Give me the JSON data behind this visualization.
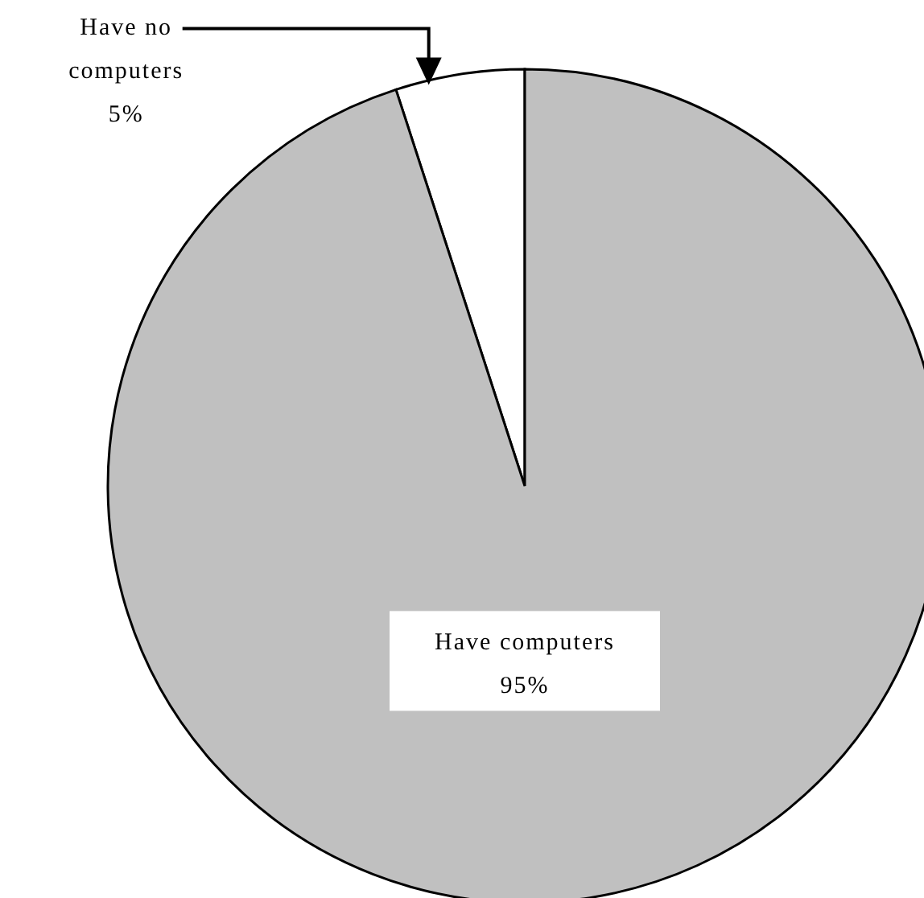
{
  "chart_data": {
    "type": "pie",
    "categories": [
      "Have no computers",
      "Have computers"
    ],
    "values": [
      5,
      95
    ],
    "colors": [
      "#ffffff",
      "#c0c0c0"
    ],
    "value_labels": [
      "5%",
      "95%"
    ],
    "legend": false
  }
}
